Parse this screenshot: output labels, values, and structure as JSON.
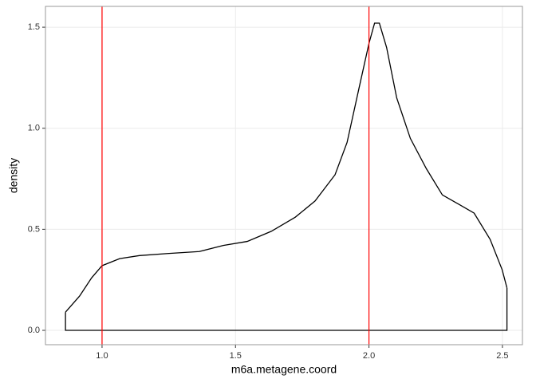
{
  "chart_data": {
    "type": "density",
    "x_label": "m6a.metagene.coord",
    "y_label": "density",
    "x": [
      0.863,
      0.916,
      0.961,
      1.0,
      1.066,
      1.14,
      1.245,
      1.364,
      1.454,
      1.544,
      1.634,
      1.724,
      1.798,
      1.873,
      1.918,
      1.963,
      2.0,
      2.021,
      2.039,
      2.066,
      2.104,
      2.155,
      2.215,
      2.275,
      2.335,
      2.394,
      2.454,
      2.499,
      2.517
    ],
    "values": [
      0.09,
      0.17,
      0.26,
      0.32,
      0.355,
      0.37,
      0.38,
      0.39,
      0.42,
      0.44,
      0.49,
      0.56,
      0.64,
      0.77,
      0.93,
      1.2,
      1.42,
      1.52,
      1.52,
      1.4,
      1.15,
      0.95,
      0.8,
      0.67,
      0.625,
      0.58,
      0.45,
      0.3,
      0.21
    ],
    "color": "#000000",
    "vlines": [
      1.0,
      2.0
    ],
    "vline_color": "#ff0000",
    "xlim": [
      0.788,
      2.575
    ],
    "ylim": [
      -0.071,
      1.603
    ],
    "xticks": [
      {
        "value": 1.0,
        "label": "1.0"
      },
      {
        "value": 1.5,
        "label": "1.5"
      },
      {
        "value": 2.0,
        "label": "2.0"
      },
      {
        "value": 2.5,
        "label": "2.5"
      }
    ],
    "yticks": [
      {
        "value": 0.0,
        "label": "0.0"
      },
      {
        "value": 0.5,
        "label": "0.5"
      },
      {
        "value": 1.0,
        "label": "1.0"
      },
      {
        "value": 1.5,
        "label": "1.5"
      }
    ],
    "grid": true
  }
}
